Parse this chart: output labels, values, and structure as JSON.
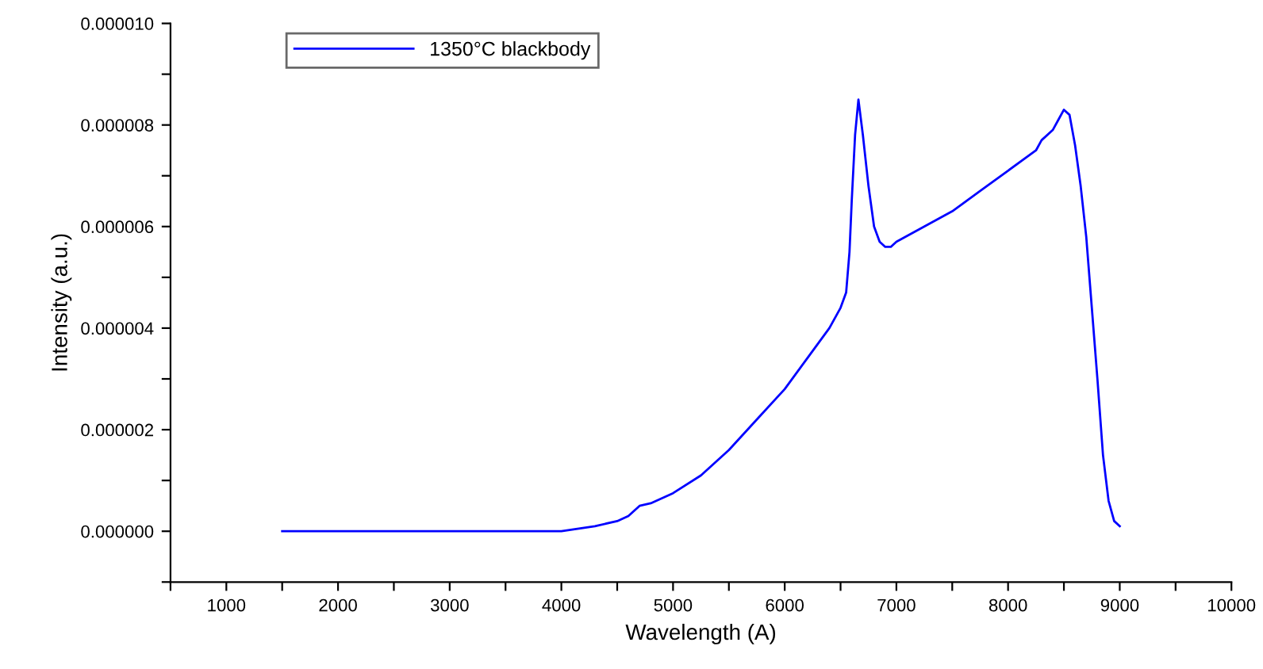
{
  "chart_data": {
    "type": "line",
    "xlabel": "Wavelength (A)",
    "ylabel": "Intensity (a.u.)",
    "x": [
      1500,
      2500,
      3500,
      4000,
      4300,
      4500,
      4600,
      4700,
      4800,
      5000,
      5250,
      5500,
      5750,
      6000,
      6200,
      6300,
      6400,
      6500,
      6550,
      6580,
      6600,
      6630,
      6660,
      6700,
      6750,
      6800,
      6850,
      6900,
      6950,
      7000,
      7250,
      7500,
      7750,
      8000,
      8250,
      8300,
      8400,
      8450,
      8500,
      8550,
      8600,
      8650,
      8700,
      8750,
      8800,
      8850,
      8900,
      8950,
      9000
    ],
    "series": [
      {
        "name": "1350°C blackbody",
        "color": "#0000ff",
        "values": [
          0,
          0,
          0,
          0,
          1e-07,
          2e-07,
          3e-07,
          5e-07,
          5.5e-07,
          7.5e-07,
          1.1e-06,
          1.6e-06,
          2.2e-06,
          2.8e-06,
          3.4e-06,
          3.7e-06,
          4e-06,
          4.4e-06,
          4.7e-06,
          5.5e-06,
          6.5e-06,
          7.8e-06,
          8.5e-06,
          7.8e-06,
          6.8e-06,
          6e-06,
          5.7e-06,
          5.6e-06,
          5.6e-06,
          5.7e-06,
          6e-06,
          6.3e-06,
          6.7e-06,
          7.1e-06,
          7.5e-06,
          7.7e-06,
          7.9e-06,
          8.1e-06,
          8.3e-06,
          8.2e-06,
          7.6e-06,
          6.8e-06,
          5.8e-06,
          4.4e-06,
          3e-06,
          1.5e-06,
          6e-07,
          2e-07,
          1e-07
        ]
      }
    ],
    "xlim": [
      500,
      10000
    ],
    "xticks": [
      {
        "value": 500,
        "label": null
      },
      1000,
      {
        "value": 1500,
        "label": null
      },
      2000,
      {
        "value": 2500,
        "label": null
      },
      3000,
      {
        "value": 3500,
        "label": null
      },
      4000,
      {
        "value": 4500,
        "label": null
      },
      5000,
      {
        "value": 5500,
        "label": null
      },
      6000,
      {
        "value": 6500,
        "label": null
      },
      7000,
      {
        "value": 7500,
        "label": null
      },
      8000,
      {
        "value": 8500,
        "label": null
      },
      9000,
      {
        "value": 9500,
        "label": null
      },
      10000
    ],
    "ylim": [
      -1e-06,
      1e-05
    ],
    "yticks": [
      {
        "value": -1e-06,
        "label": null
      },
      {
        "value": 0,
        "label": "0.000000"
      },
      {
        "value": 1e-06,
        "label": null
      },
      {
        "value": 2e-06,
        "label": "0.000002"
      },
      {
        "value": 3e-06,
        "label": null
      },
      {
        "value": 4e-06,
        "label": "0.000004"
      },
      {
        "value": 5e-06,
        "label": null
      },
      {
        "value": 6e-06,
        "label": "0.000006"
      },
      {
        "value": 7e-06,
        "label": null
      },
      {
        "value": 8e-06,
        "label": "0.000008"
      },
      {
        "value": 9e-06,
        "label": null
      },
      {
        "value": 1e-05,
        "label": "0.000010"
      }
    ],
    "legend": "top left",
    "grid": false,
    "marker": "none",
    "line_style": "solid"
  }
}
